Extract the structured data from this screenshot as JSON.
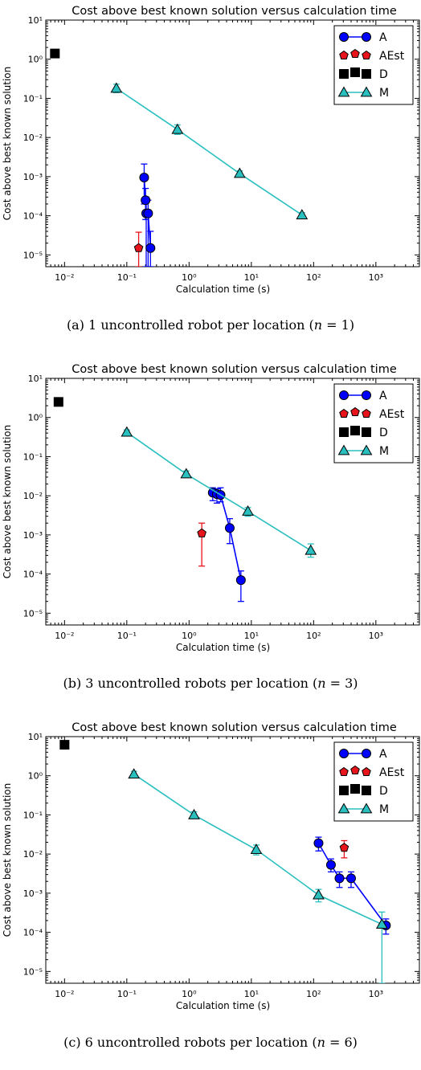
{
  "charts": [
    {
      "title": "Cost above best known solution versus calculation time",
      "xlabel": "Calculation time (s)",
      "ylabel": "Cost above best known solution",
      "caption": "(a) 1 uncontrolled robot per location (n = 1)",
      "caption_lead": "(a) 1 uncontrolled robot per location (",
      "caption_var": "n",
      "caption_eq": " = 1)",
      "legend": [
        "A",
        "AEst",
        "D",
        "M"
      ]
    },
    {
      "title": "Cost above best known solution versus calculation time",
      "xlabel": "Calculation time (s)",
      "ylabel": "Cost above best known solution",
      "caption": "(b) 3 uncontrolled robots per location (n = 3)",
      "caption_lead": "(b) 3 uncontrolled robots per location (",
      "caption_var": "n",
      "caption_eq": " = 3)",
      "legend": [
        "A",
        "AEst",
        "D",
        "M"
      ]
    },
    {
      "title": "Cost above best known solution versus calculation time",
      "xlabel": "Calculation time (s)",
      "ylabel": "Cost above best known solution",
      "caption": "(c) 6 uncontrolled robots per location (n = 6)",
      "caption_lead": "(c) 6 uncontrolled robots per location (",
      "caption_var": "n",
      "caption_eq": " = 6)",
      "legend": [
        "A",
        "AEst",
        "D",
        "M"
      ]
    }
  ],
  "chart_data": [
    {
      "type": "scatter",
      "title": "Cost above best known solution versus calculation time",
      "xlabel": "Calculation time (s)",
      "ylabel": "Cost above best known solution",
      "xscale": "log",
      "yscale": "log",
      "xlim": [
        0.005,
        5000
      ],
      "ylim": [
        5e-06,
        10
      ],
      "xticks": [
        "10⁻²",
        "10⁻¹",
        "10⁰",
        "10¹",
        "10²",
        "10³"
      ],
      "yticks": [
        "10⁻⁵",
        "10⁻⁴",
        "10⁻³",
        "10⁻²",
        "10⁻¹",
        "10⁰",
        "10¹"
      ],
      "legend_position": "top-right",
      "colors": {
        "A": "#0000ff",
        "AEst": "#e8141b",
        "D": "#000000",
        "M": "#2abfbf"
      },
      "series": [
        {
          "name": "A",
          "marker": "circle",
          "line": true,
          "points": [
            {
              "x": 0.19,
              "y": 0.00095,
              "lo": 0.0002,
              "hi": 0.0021
            },
            {
              "x": 0.2,
              "y": 0.00025,
              "lo": 8e-05,
              "hi": 0.0005
            },
            {
              "x": 0.205,
              "y": 0.000115,
              "lo": 5e-06,
              "hi": 0.0003
            },
            {
              "x": 0.22,
              "y": 0.000115,
              "lo": 5e-06,
              "hi": 0.00025
            },
            {
              "x": 0.24,
              "y": 1.5e-05,
              "lo": 5e-06,
              "hi": 4e-05
            }
          ]
        },
        {
          "name": "AEst",
          "marker": "pentagon",
          "line": false,
          "points": [
            {
              "x": 0.155,
              "y": 1.5e-05,
              "lo": 5e-06,
              "hi": 3.8e-05
            }
          ]
        },
        {
          "name": "D",
          "marker": "square",
          "line": false,
          "points": [
            {
              "x": 0.007,
              "y": 1.4
            }
          ]
        },
        {
          "name": "M",
          "marker": "triangle",
          "line": true,
          "points": [
            {
              "x": 0.068,
              "y": 0.18,
              "lo": 0.14,
              "hi": 0.23
            },
            {
              "x": 0.65,
              "y": 0.016,
              "lo": 0.012,
              "hi": 0.021
            },
            {
              "x": 6.5,
              "y": 0.0012,
              "lo": 0.001,
              "hi": 0.0014
            },
            {
              "x": 65,
              "y": 0.000105,
              "lo": 9e-05,
              "hi": 0.00012
            }
          ]
        }
      ]
    },
    {
      "type": "scatter",
      "title": "Cost above best known solution versus calculation time",
      "xlabel": "Calculation time (s)",
      "ylabel": "Cost above best known solution",
      "xscale": "log",
      "yscale": "log",
      "xlim": [
        0.005,
        5000
      ],
      "ylim": [
        5e-06,
        10
      ],
      "xticks": [
        "10⁻²",
        "10⁻¹",
        "10⁰",
        "10¹",
        "10²",
        "10³"
      ],
      "yticks": [
        "10⁻⁵",
        "10⁻⁴",
        "10⁻³",
        "10⁻²",
        "10⁻¹",
        "10⁰",
        "10¹"
      ],
      "legend_position": "top-right",
      "colors": {
        "A": "#0000ff",
        "AEst": "#e8141b",
        "D": "#000000",
        "M": "#2abfbf"
      },
      "series": [
        {
          "name": "A",
          "marker": "circle",
          "line": true,
          "points": [
            {
              "x": 2.4,
              "y": 0.012,
              "lo": 0.0075,
              "hi": 0.016
            },
            {
              "x": 2.8,
              "y": 0.011,
              "lo": 0.0065,
              "hi": 0.015
            },
            {
              "x": 3.2,
              "y": 0.0105,
              "lo": 0.007,
              "hi": 0.016
            },
            {
              "x": 4.5,
              "y": 0.0015,
              "lo": 0.0006,
              "hi": 0.0026
            },
            {
              "x": 6.8,
              "y": 7e-05,
              "lo": 2e-05,
              "hi": 0.00012
            }
          ]
        },
        {
          "name": "AEst",
          "marker": "pentagon",
          "line": false,
          "points": [
            {
              "x": 1.6,
              "y": 0.0011,
              "lo": 0.00016,
              "hi": 0.002
            }
          ]
        },
        {
          "name": "D",
          "marker": "square",
          "line": false,
          "points": [
            {
              "x": 0.008,
              "y": 2.5
            }
          ]
        },
        {
          "name": "M",
          "marker": "triangle",
          "line": true,
          "points": [
            {
              "x": 0.1,
              "y": 0.42,
              "lo": 0.36,
              "hi": 0.48
            },
            {
              "x": 0.9,
              "y": 0.036,
              "lo": 0.03,
              "hi": 0.043
            },
            {
              "x": 8.8,
              "y": 0.004,
              "lo": 0.003,
              "hi": 0.005
            },
            {
              "x": 90,
              "y": 0.0004,
              "lo": 0.00027,
              "hi": 0.00059
            }
          ]
        }
      ]
    },
    {
      "type": "scatter",
      "title": "Cost above best known solution versus calculation time",
      "xlabel": "Calculation time (s)",
      "ylabel": "Cost above best known solution",
      "xscale": "log",
      "yscale": "log",
      "xlim": [
        0.005,
        5000
      ],
      "ylim": [
        5e-06,
        10
      ],
      "xticks": [
        "10⁻²",
        "10⁻¹",
        "10⁰",
        "10¹",
        "10²",
        "10³"
      ],
      "yticks": [
        "10⁻⁵",
        "10⁻⁴",
        "10⁻³",
        "10⁻²",
        "10⁻¹",
        "10⁰",
        "10¹"
      ],
      "legend_position": "top-right",
      "colors": {
        "A": "#0000ff",
        "AEst": "#e8141b",
        "D": "#000000",
        "M": "#2abfbf"
      },
      "series": [
        {
          "name": "A",
          "marker": "circle",
          "line": true,
          "points": [
            {
              "x": 120,
              "y": 0.019,
              "lo": 0.012,
              "hi": 0.027
            },
            {
              "x": 190,
              "y": 0.0053,
              "lo": 0.0035,
              "hi": 0.0075
            },
            {
              "x": 260,
              "y": 0.0024,
              "lo": 0.0014,
              "hi": 0.0035
            },
            {
              "x": 400,
              "y": 0.0024,
              "lo": 0.0014,
              "hi": 0.0035
            },
            {
              "x": 1450,
              "y": 0.00015,
              "lo": 9e-05,
              "hi": 0.00022
            }
          ]
        },
        {
          "name": "AEst",
          "marker": "pentagon",
          "line": false,
          "points": [
            {
              "x": 310,
              "y": 0.0145,
              "lo": 0.008,
              "hi": 0.022
            }
          ]
        },
        {
          "name": "D",
          "marker": "square",
          "line": false,
          "points": [
            {
              "x": 0.01,
              "y": 6.2
            }
          ]
        },
        {
          "name": "M",
          "marker": "triangle",
          "line": true,
          "points": [
            {
              "x": 0.13,
              "y": 1.1,
              "lo": 0.95,
              "hi": 1.3
            },
            {
              "x": 1.2,
              "y": 0.1,
              "lo": 0.085,
              "hi": 0.12
            },
            {
              "x": 12,
              "y": 0.013,
              "lo": 0.0095,
              "hi": 0.017
            },
            {
              "x": 120,
              "y": 0.0009,
              "lo": 0.0006,
              "hi": 0.00125
            },
            {
              "x": 1250,
              "y": 0.00016,
              "lo": 5e-06,
              "hi": 0.00033
            }
          ]
        }
      ]
    }
  ]
}
